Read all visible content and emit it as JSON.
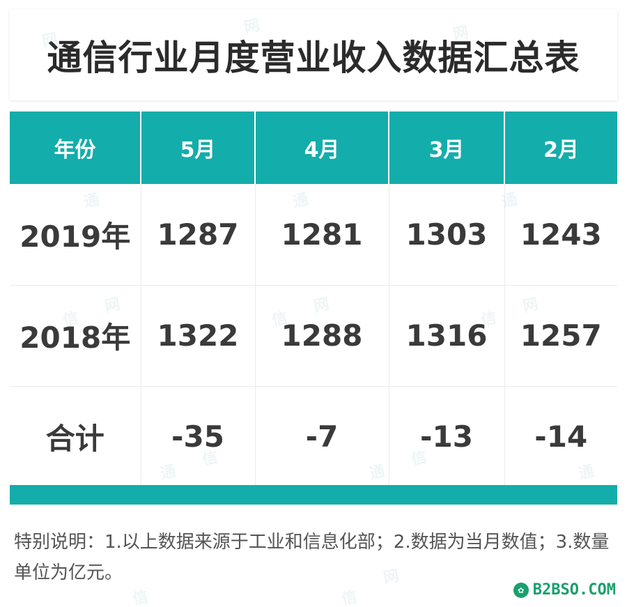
{
  "title": "通信行业月度营业收入数据汇总表",
  "table": {
    "headers": [
      "年份",
      "5月",
      "4月",
      "3月",
      "2月"
    ],
    "rows": [
      [
        "2019年",
        "1287",
        "1281",
        "1303",
        "1243"
      ],
      [
        "2018年",
        "1322",
        "1288",
        "1316",
        "1257"
      ],
      [
        "合计",
        "-35",
        "-7",
        "-13",
        "-14"
      ]
    ]
  },
  "note": "特别说明：1.以上数据来源于工业和信息化部；2.数据为当月数值；3.数量单位为亿元。",
  "brand": {
    "text": "B2BSO.COM",
    "icon": "leaf-icon",
    "color": "#1aa06d"
  },
  "watermark": {
    "chars": [
      "通",
      "信",
      "网"
    ]
  },
  "colors": {
    "accent": "#13adab"
  }
}
